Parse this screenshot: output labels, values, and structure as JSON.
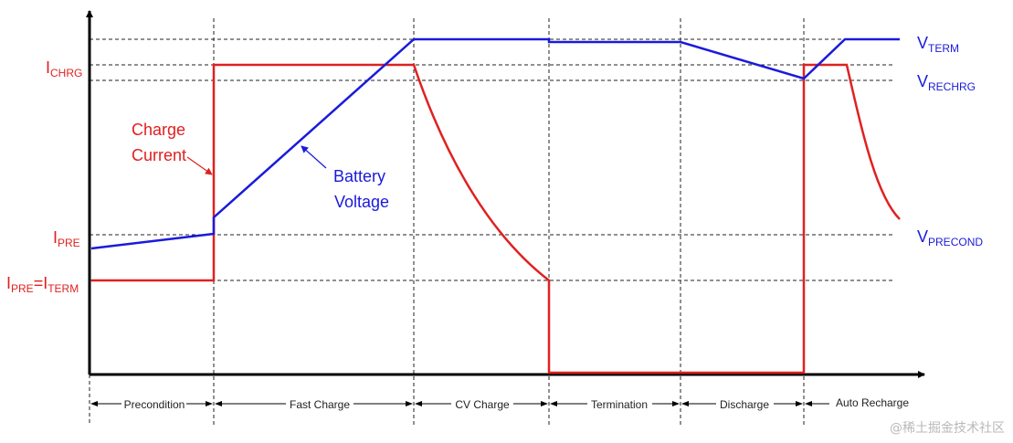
{
  "colors": {
    "current": "#e02020",
    "voltage": "#1a1adc",
    "axis": "#000000",
    "grid": "#222222"
  },
  "left_labels": {
    "ichrg": {
      "main": "I",
      "sub": "CHRG"
    },
    "ipre": {
      "main": "I",
      "sub": "PRE"
    },
    "ipre_iterm": {
      "main1": "I",
      "sub1": "PRE",
      "eq": "=I",
      "sub2": "TERM"
    }
  },
  "right_labels": {
    "vterm": {
      "main": "V",
      "sub": "TERM"
    },
    "vrechrg": {
      "main": "V",
      "sub": "RECHRG"
    },
    "vprecond": {
      "main": "V",
      "sub": "PRECOND"
    }
  },
  "annotations": {
    "charge_current": [
      "Charge",
      "Current"
    ],
    "battery_voltage": [
      "Battery",
      "Voltage"
    ]
  },
  "phases": [
    "Precondition",
    "Fast Charge",
    "CV Charge",
    "Termination",
    "Discharge",
    "Auto Recharge"
  ],
  "watermark": "@稀土掘金技术社区"
}
